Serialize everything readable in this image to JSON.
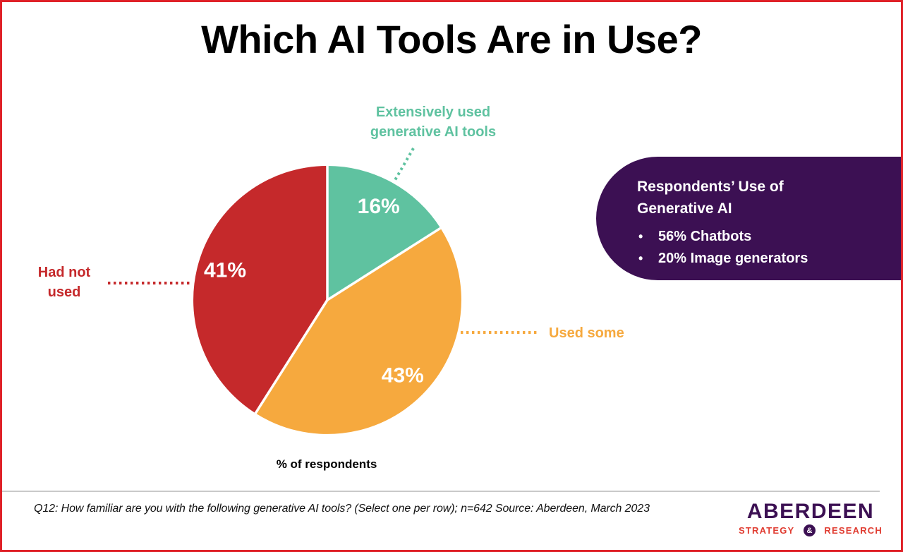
{
  "title": "Which AI Tools Are in Use?",
  "chart_data": {
    "type": "pie",
    "title": "Which AI Tools Are in Use?",
    "xlabel": "% of respondents",
    "start_angle_deg": 0,
    "direction": "clockwise",
    "value_label_format": "{value}%",
    "slices": [
      {
        "id": "extensively-used",
        "label": "Extensively used generative AI tools",
        "value": 16,
        "color": "#5FC2A0"
      },
      {
        "id": "used-some",
        "label": "Used some",
        "value": 43,
        "color": "#F6A93E"
      },
      {
        "id": "had-not-used",
        "label": "Had not used",
        "value": 41,
        "color": "#C5292B"
      }
    ]
  },
  "external_labels": {
    "extensively_line1": "Extensively used",
    "extensively_line2": "generative AI tools",
    "used_some": "Used some",
    "had_not_line1": "Had not",
    "had_not_line2": "used"
  },
  "callout": {
    "heading": "Respondents’ Use of Generative AI",
    "bullets": [
      "56% Chatbots",
      "20% Image generators"
    ],
    "bullet_marker": "•",
    "background": "#3C1053",
    "text_color": "#FFFFFF"
  },
  "footer": {
    "note": "Q12: How familiar are you with the following generative AI tools? (Select one per row); n=642 Source: Aberdeen, March 2023",
    "logo": {
      "name": "ABERDEEN",
      "strategy": "STRATEGY",
      "amp": "&",
      "research": "RESEARCH",
      "name_color": "#3C1053",
      "sub_color": "#E03C31"
    }
  },
  "colors": {
    "page_border": "#DF2128",
    "divider": "#C9C9C9",
    "title_text": "#000000"
  }
}
